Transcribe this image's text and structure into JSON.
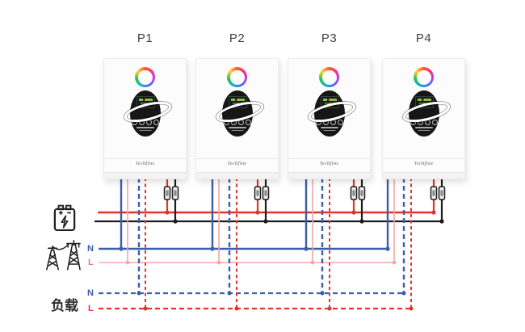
{
  "diagram": {
    "title_labels": [
      "P1",
      "P2",
      "P3",
      "P4"
    ],
    "brand_text": "Techfine",
    "grid": {
      "n_label": "N",
      "l_label": "L"
    },
    "load": {
      "n_label": "N",
      "l_label": "L",
      "title": "负载"
    },
    "icons": {
      "left_top": "battery-icon",
      "left_middle": "power-grid-icon",
      "unit_top": "rgb-ring-icon",
      "unit_center": "inverter-display-icon"
    },
    "colors": {
      "wire_red": "#e0342e",
      "wire_black": "#1c1c1c",
      "wire_blue": "#3b5ea7",
      "wire_pink": "#f2a7a5",
      "label_blue": "#3b5ea7",
      "label_red": "#e0342e",
      "label_pink": "#e87f7c",
      "load_title_color": "#2f2f2f",
      "fuse_fill": "#ececec",
      "fuse_core": "#8a8a8a"
    }
  }
}
